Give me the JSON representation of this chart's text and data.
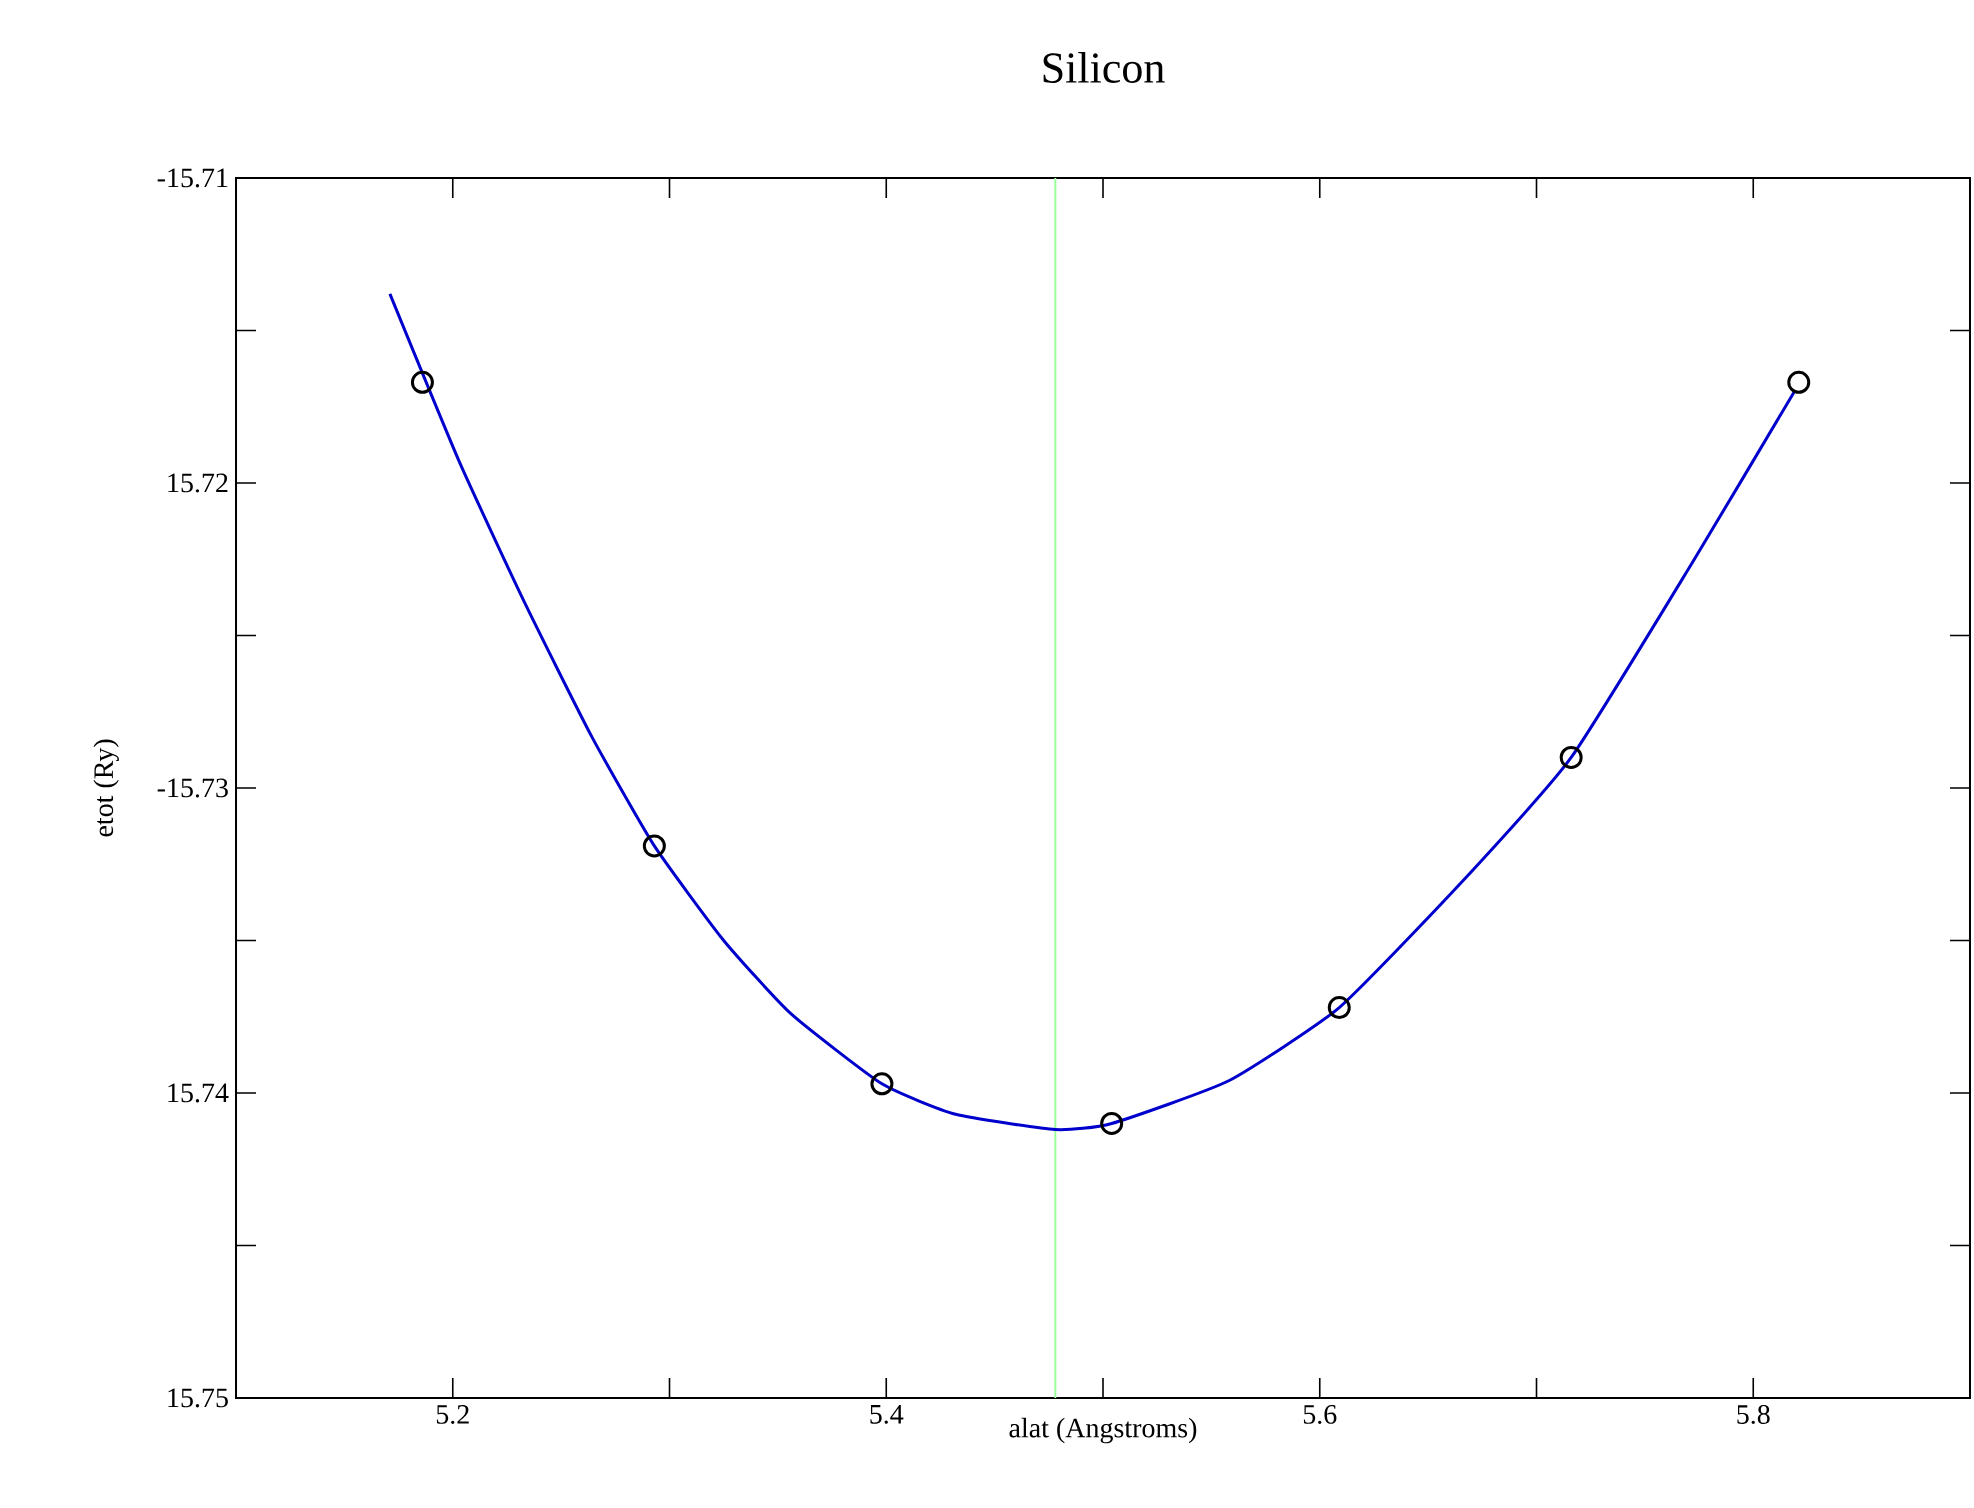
{
  "chart_data": {
    "type": "scatter",
    "title": "Silicon",
    "xlabel": "alat (Angstroms)",
    "ylabel": "etot (Ry)",
    "xlim": [
      5.1,
      5.9
    ],
    "ylim": [
      -15.75,
      -15.71
    ],
    "xticks": [
      5.2,
      {
        "value": 5.3,
        "label": null
      },
      5.4,
      {
        "value": 5.5,
        "label": null
      },
      5.6,
      {
        "value": 5.7,
        "label": null
      },
      5.8
    ],
    "yticks": [
      {
        "value": -15.75,
        "label": "15.75"
      },
      {
        "value": -15.745,
        "label": null
      },
      {
        "value": -15.74,
        "label": "15.74"
      },
      {
        "value": -15.735,
        "label": null
      },
      -15.73,
      {
        "value": -15.725,
        "label": null
      },
      {
        "value": -15.72,
        "label": "15.72"
      },
      {
        "value": -15.715,
        "label": null
      },
      -15.71
    ],
    "marker": "circle",
    "series": [
      {
        "color": "#000000",
        "x": [
          5.186,
          5.293,
          5.398,
          5.504,
          5.609,
          5.716,
          5.821
        ],
        "values": [
          -15.7167,
          -15.7319,
          -15.7397,
          -15.741,
          -15.7372,
          -15.729,
          -15.7167
        ]
      },
      {
        "type": "line",
        "marker": "none",
        "color": "#0000cc",
        "x": [
          5.171,
          5.203,
          5.233,
          5.264,
          5.293,
          5.325,
          5.356,
          5.398,
          5.432,
          5.478,
          5.504,
          5.558,
          5.609,
          5.664,
          5.716,
          5.772,
          5.819
        ],
        "values": [
          -15.7138,
          -15.7193,
          -15.7239,
          -15.7283,
          -15.7319,
          -15.735,
          -15.7374,
          -15.7397,
          -15.7407,
          -15.7412,
          -15.741,
          -15.7396,
          -15.7372,
          -15.7332,
          -15.729,
          -15.7226,
          -15.717
        ]
      }
    ],
    "ref_lines": [
      {
        "axis": "x",
        "value": 5.478,
        "color": "#99ff99"
      }
    ]
  }
}
